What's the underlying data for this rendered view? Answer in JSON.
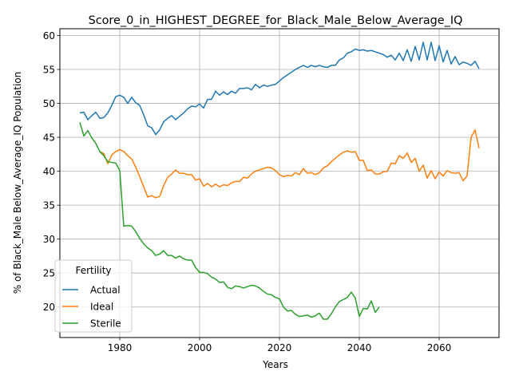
{
  "chart_data": {
    "type": "line",
    "title": "Score_0_in_HIGHEST_DEGREE_for_Black_Male_Below_Average_IQ",
    "xlabel": "Years",
    "ylabel": "% of Black_Male Below_Average_IQ Population",
    "xlim": [
      1965,
      2075
    ],
    "ylim": [
      15.5,
      61
    ],
    "xticks": [
      1980,
      2000,
      2020,
      2040,
      2060
    ],
    "yticks": [
      20,
      25,
      30,
      35,
      40,
      45,
      50,
      55,
      60
    ],
    "grid": true,
    "legend": {
      "title": "Fertility",
      "placement": "lower-left"
    },
    "series": [
      {
        "name": "Actual",
        "color": "#1f77b4",
        "x": [
          1970,
          1971,
          1972,
          1973,
          1974,
          1975,
          1976,
          1977,
          1978,
          1979,
          1980,
          1981,
          1982,
          1983,
          1984,
          1985,
          1986,
          1987,
          1988,
          1989,
          1990,
          1991,
          1992,
          1993,
          1994,
          1995,
          1996,
          1997,
          1998,
          1999,
          2000,
          2001,
          2002,
          2003,
          2004,
          2005,
          2006,
          2007,
          2008,
          2009,
          2010,
          2011,
          2012,
          2013,
          2014,
          2015,
          2016,
          2017,
          2018,
          2019,
          2020,
          2021,
          2022,
          2023,
          2024,
          2025,
          2026,
          2027,
          2028,
          2029,
          2030,
          2031,
          2032,
          2033,
          2034,
          2035,
          2036,
          2037,
          2038,
          2039,
          2040,
          2041,
          2042,
          2043,
          2044,
          2045,
          2046,
          2047,
          2048,
          2049,
          2050,
          2051,
          2052,
          2053,
          2054,
          2055,
          2056,
          2057,
          2058,
          2059,
          2060,
          2061,
          2062,
          2063,
          2064,
          2065,
          2066,
          2067,
          2068,
          2069,
          2070
        ],
        "values": [
          48.6,
          48.7,
          47.6,
          48.2,
          48.7,
          47.8,
          47.9,
          48.6,
          49.7,
          51.0,
          51.2,
          50.9,
          50.0,
          50.9,
          50.1,
          49.7,
          48.3,
          46.7,
          46.4,
          45.4,
          46.1,
          47.3,
          47.8,
          48.2,
          47.6,
          48.1,
          48.6,
          49.2,
          49.6,
          49.5,
          49.9,
          49.3,
          50.6,
          50.6,
          51.8,
          51.2,
          51.7,
          51.3,
          51.8,
          51.5,
          52.2,
          52.2,
          52.3,
          52.0,
          52.8,
          52.3,
          52.7,
          52.5,
          52.7,
          52.8,
          53.3,
          53.8,
          54.2,
          54.6,
          55.0,
          55.3,
          55.6,
          55.3,
          55.6,
          55.4,
          55.6,
          55.4,
          55.3,
          55.6,
          55.6,
          56.4,
          56.7,
          57.4,
          57.6,
          58.0,
          57.8,
          57.9,
          57.7,
          57.8,
          57.6,
          57.4,
          57.2,
          56.8,
          57.1,
          56.4,
          57.4,
          56.3,
          57.9,
          56.2,
          58.4,
          56.4,
          59.0,
          56.4,
          59.0,
          56.3,
          58.5,
          56.1,
          57.8,
          55.8,
          56.9,
          55.7,
          56.1,
          55.9,
          55.6,
          56.2,
          55.1
        ]
      },
      {
        "name": "Ideal",
        "color": "#ff7f0e",
        "x": [
          1975,
          1976,
          1977,
          1978,
          1979,
          1980,
          1981,
          1982,
          1983,
          1984,
          1985,
          1986,
          1987,
          1988,
          1989,
          1990,
          1991,
          1992,
          1993,
          1994,
          1995,
          1996,
          1997,
          1998,
          1999,
          2000,
          2001,
          2002,
          2003,
          2004,
          2005,
          2006,
          2007,
          2008,
          2009,
          2010,
          2011,
          2012,
          2013,
          2014,
          2015,
          2016,
          2017,
          2018,
          2019,
          2020,
          2021,
          2022,
          2023,
          2024,
          2025,
          2026,
          2027,
          2028,
          2029,
          2030,
          2031,
          2032,
          2033,
          2034,
          2035,
          2036,
          2037,
          2038,
          2039,
          2040,
          2041,
          2042,
          2043,
          2044,
          2045,
          2046,
          2047,
          2048,
          2049,
          2050,
          2051,
          2052,
          2053,
          2054,
          2055,
          2056,
          2057,
          2058,
          2059,
          2060,
          2061,
          2062,
          2063,
          2064,
          2065,
          2066,
          2067,
          2068,
          2069,
          2070
        ],
        "values": [
          42.9,
          42.6,
          41.1,
          42.4,
          42.9,
          43.2,
          42.9,
          42.3,
          41.8,
          40.6,
          39.2,
          37.7,
          36.2,
          36.4,
          36.1,
          36.3,
          37.9,
          39.1,
          39.6,
          40.2,
          39.7,
          39.7,
          39.5,
          39.5,
          38.7,
          38.9,
          37.8,
          38.2,
          37.7,
          38.1,
          37.7,
          38.0,
          37.9,
          38.3,
          38.5,
          38.5,
          39.1,
          39.0,
          39.6,
          40.0,
          40.2,
          40.4,
          40.6,
          40.5,
          40.1,
          39.5,
          39.2,
          39.4,
          39.3,
          39.8,
          39.5,
          40.4,
          39.7,
          39.8,
          39.5,
          39.8,
          40.5,
          40.8,
          41.4,
          41.9,
          42.4,
          42.8,
          43.0,
          42.8,
          42.9,
          41.6,
          41.6,
          40.1,
          40.2,
          39.6,
          39.6,
          39.9,
          40.0,
          41.2,
          41.1,
          42.3,
          41.9,
          42.7,
          41.3,
          41.9,
          40.0,
          40.9,
          39.0,
          40.1,
          38.9,
          39.9,
          39.3,
          40.1,
          39.8,
          39.7,
          39.8,
          38.6,
          39.3,
          45.0,
          46.1,
          43.4
        ]
      },
      {
        "name": "Sterile",
        "color": "#2ca02c",
        "x": [
          1970,
          1971,
          1972,
          1973,
          1974,
          1975,
          1976,
          1977,
          1978,
          1979,
          1980,
          1981,
          1982,
          1983,
          1984,
          1985,
          1986,
          1987,
          1988,
          1989,
          1990,
          1991,
          1992,
          1993,
          1994,
          1995,
          1996,
          1997,
          1998,
          1999,
          2000,
          2001,
          2002,
          2003,
          2004,
          2005,
          2006,
          2007,
          2008,
          2009,
          2010,
          2011,
          2012,
          2013,
          2014,
          2015,
          2016,
          2017,
          2018,
          2019,
          2020,
          2021,
          2022,
          2023,
          2024,
          2025,
          2026,
          2027,
          2028,
          2029,
          2030,
          2031,
          2032,
          2033,
          2034,
          2035,
          2036,
          2037,
          2038,
          2039,
          2040,
          2041,
          2042,
          2043,
          2044,
          2045,
          2046
        ],
        "values": [
          47.2,
          45.2,
          46.0,
          44.9,
          44.1,
          42.9,
          42.3,
          41.4,
          41.3,
          41.2,
          40.1,
          31.9,
          32.0,
          31.9,
          31.1,
          30.1,
          29.3,
          28.7,
          28.3,
          27.6,
          27.8,
          28.3,
          27.6,
          27.6,
          27.2,
          27.5,
          27.1,
          26.9,
          26.9,
          25.8,
          25.1,
          25.1,
          24.9,
          24.4,
          24.1,
          23.6,
          23.7,
          22.9,
          22.7,
          23.1,
          23.0,
          22.8,
          23.0,
          23.2,
          23.1,
          22.8,
          22.3,
          21.9,
          21.8,
          21.4,
          21.2,
          20.0,
          19.4,
          19.5,
          18.9,
          18.6,
          18.7,
          18.8,
          18.5,
          18.7,
          19.1,
          18.2,
          18.2,
          19.0,
          20.0,
          20.8,
          21.1,
          21.4,
          22.2,
          21.3,
          18.6,
          19.8,
          19.7,
          20.9,
          19.2,
          20.0,
          null
        ]
      }
    ]
  }
}
